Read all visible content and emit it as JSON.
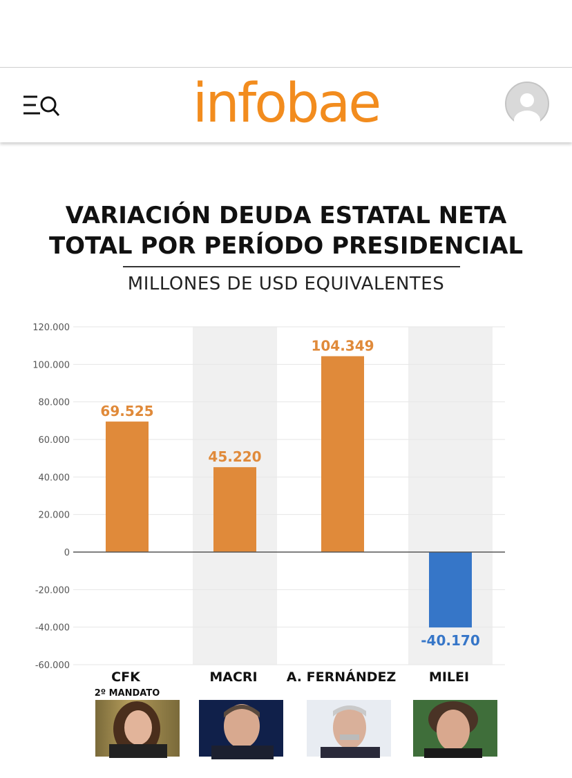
{
  "header": {
    "logo_text": "infobae",
    "menu_icon": "menu-search-icon",
    "avatar_icon": "user-avatar-icon",
    "brand_color": "#f28c1e"
  },
  "chart_data": {
    "type": "bar",
    "title_lines": [
      "VARIACIÓN DEUDA ESTATAL NETA",
      "TOTAL POR PERÍODO PRESIDENCIAL"
    ],
    "subtitle": "MILLONES DE USD EQUIVALENTES",
    "categories": [
      "CFK",
      "MACRI",
      "A.  FERNÁNDEZ",
      "MILEI"
    ],
    "category_sublabels": [
      "2º MANDATO",
      "",
      "",
      ""
    ],
    "values": [
      69525,
      45220,
      104349,
      -40170
    ],
    "value_labels": [
      "69.525",
      "45.220",
      "104.349",
      "-40.170"
    ],
    "ylim": [
      -60000,
      120000
    ],
    "yticks": [
      120000,
      100000,
      80000,
      60000,
      40000,
      20000,
      0,
      -20000,
      -40000,
      -60000
    ],
    "ytick_labels": [
      "120.000",
      "100.000",
      "80.000",
      "60.000",
      "40.000",
      "20.000",
      "0",
      "-20.000",
      "-40.000",
      "-60.000"
    ],
    "colors": {
      "positive": "#e08a3a",
      "negative": "#3676c8",
      "shade": "#f0f0f0",
      "grid": "#e6e6e6"
    },
    "xlabel": "",
    "ylabel": ""
  }
}
